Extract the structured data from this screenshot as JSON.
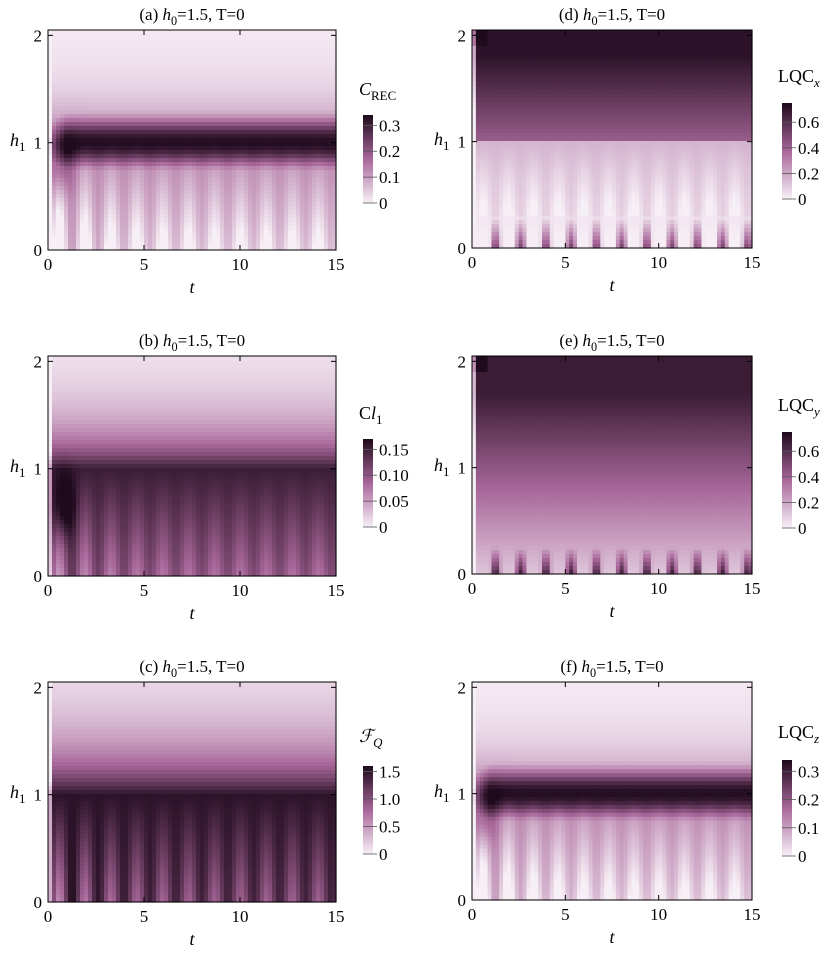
{
  "chart_data": [
    {
      "panel": "a",
      "type": "heatmap",
      "title": {
        "prefix": "(a) ",
        "var": "h",
        "sub": "0",
        "rest": "=1.5, T=0"
      },
      "xlabel": "t",
      "ylabel": {
        "var": "h",
        "sub": "1"
      },
      "xticks": [
        "0",
        "5",
        "10",
        "15"
      ],
      "yticks": [
        "0",
        "1",
        "2"
      ],
      "xlim": [
        0,
        15
      ],
      "ylim": [
        0,
        2.05
      ],
      "colorbar": {
        "label_main": "C",
        "label_sub": "REC",
        "label_italic_main": true,
        "ticks": [
          "0",
          "0.1",
          "0.2",
          "0.3"
        ],
        "tick_values": [
          0,
          0.1,
          0.2,
          0.3
        ],
        "max": 0.34
      },
      "profile": "rec"
    },
    {
      "panel": "b",
      "type": "heatmap",
      "title": {
        "prefix": "(b) ",
        "var": "h",
        "sub": "0",
        "rest": "=1.5, T=0"
      },
      "xlabel": "t",
      "ylabel": {
        "var": "h",
        "sub": "1"
      },
      "xticks": [
        "0",
        "5",
        "10",
        "15"
      ],
      "yticks": [
        "0",
        "1",
        "2"
      ],
      "xlim": [
        0,
        15
      ],
      "ylim": [
        0,
        2.05
      ],
      "colorbar": {
        "label_main": "C",
        "label_sub": "l",
        "label_sub2": "1",
        "ticks": [
          "0",
          "0.05",
          "0.10",
          "0.15"
        ],
        "tick_values": [
          0,
          0.05,
          0.1,
          0.15
        ],
        "max": 0.17
      },
      "profile": "l1"
    },
    {
      "panel": "c",
      "type": "heatmap",
      "title": {
        "prefix": "(c) ",
        "var": "h",
        "sub": "0",
        "rest": "=1.5, T=0"
      },
      "xlabel": "t",
      "ylabel": {
        "var": "h",
        "sub": "1"
      },
      "xticks": [
        "0",
        "5",
        "10",
        "15"
      ],
      "yticks": [
        "0",
        "1",
        "2"
      ],
      "xlim": [
        0,
        15
      ],
      "ylim": [
        0,
        2.05
      ],
      "colorbar": {
        "label_main": "F",
        "label_sub": "Q",
        "label_italic_main": true,
        "ticks": [
          "0",
          "0.5",
          "1.0",
          "1.5"
        ],
        "tick_values": [
          0,
          0.5,
          1.0,
          1.5
        ],
        "max": 1.6
      },
      "profile": "fq"
    },
    {
      "panel": "d",
      "type": "heatmap",
      "title": {
        "prefix": "(d) ",
        "var": "h",
        "sub": "0",
        "rest": "=1.5, T=0"
      },
      "xlabel": "t",
      "ylabel": {
        "var": "h",
        "sub": "1"
      },
      "xticks": [
        "0",
        "5",
        "10",
        "15"
      ],
      "yticks": [
        "0",
        "1",
        "2"
      ],
      "xlim": [
        0,
        15
      ],
      "ylim": [
        0,
        2.05
      ],
      "colorbar": {
        "label_main": "LQC",
        "label_sub": "x",
        "ticks": [
          "0",
          "0.2",
          "0.4",
          "0.6"
        ],
        "tick_values": [
          0,
          0.2,
          0.4,
          0.6
        ],
        "max": 0.75
      },
      "profile": "lqcx"
    },
    {
      "panel": "e",
      "type": "heatmap",
      "title": {
        "prefix": "(e) ",
        "var": "h",
        "sub": "0",
        "rest": "=1.5, T=0"
      },
      "xlabel": "t",
      "ylabel": {
        "var": "h",
        "sub": "1"
      },
      "xticks": [
        "0",
        "5",
        "10",
        "15"
      ],
      "yticks": [
        "0",
        "1",
        "2"
      ],
      "xlim": [
        0,
        15
      ],
      "ylim": [
        0,
        2.05
      ],
      "colorbar": {
        "label_main": "LQC",
        "label_sub": "y",
        "ticks": [
          "0",
          "0.2",
          "0.4",
          "0.6"
        ],
        "tick_values": [
          0,
          0.2,
          0.4,
          0.6
        ],
        "max": 0.75
      },
      "profile": "lqcy"
    },
    {
      "panel": "f",
      "type": "heatmap",
      "title": {
        "prefix": "(f) ",
        "var": "h",
        "sub": "0",
        "rest": "=1.5, T=0"
      },
      "xlabel": "t",
      "ylabel": {
        "var": "h",
        "sub": "1"
      },
      "xticks": [
        "0",
        "5",
        "10",
        "15"
      ],
      "yticks": [
        "0",
        "1",
        "2"
      ],
      "xlim": [
        0,
        15
      ],
      "ylim": [
        0,
        2.05
      ],
      "colorbar": {
        "label_main": "LQC",
        "label_sub": "z",
        "ticks": [
          "0",
          "0.1",
          "0.2",
          "0.3"
        ],
        "tick_values": [
          0,
          0.1,
          0.2,
          0.3
        ],
        "max": 0.34
      },
      "profile": "rec"
    }
  ],
  "colors": {
    "low": "#f7eff6",
    "mid": "#a8679a",
    "high": "#1f0a1c",
    "frame": "#000000"
  }
}
